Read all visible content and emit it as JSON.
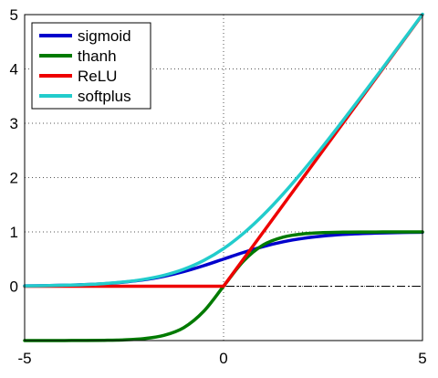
{
  "chart_data": {
    "type": "line",
    "title": "",
    "xlabel": "",
    "ylabel": "",
    "xlim": [
      -5,
      5
    ],
    "ylim": [
      -1,
      5
    ],
    "x_ticks": [
      -5,
      0,
      5
    ],
    "y_ticks": [
      0,
      1,
      2,
      3,
      4,
      5
    ],
    "x_tick_labels": [
      "-5",
      "0",
      "5"
    ],
    "y_tick_labels": [
      "0",
      "1",
      "2",
      "3",
      "4",
      "5"
    ],
    "grid": true,
    "grid_style": "dotted",
    "zero_line": {
      "y": 0,
      "style": "dash-dot",
      "color": "#000000"
    },
    "legend": {
      "position": "top-left",
      "entries": [
        "sigmoid",
        "thanh",
        "ReLU",
        "softplus"
      ]
    },
    "x": [
      -5,
      -4.5,
      -4,
      -3.5,
      -3,
      -2.5,
      -2,
      -1.5,
      -1,
      -0.5,
      0,
      0.5,
      1,
      1.5,
      2,
      2.5,
      3,
      3.5,
      4,
      4.5,
      5
    ],
    "series": [
      {
        "name": "sigmoid",
        "color": "#0000cc",
        "values": [
          0.007,
          0.011,
          0.018,
          0.029,
          0.047,
          0.076,
          0.119,
          0.182,
          0.269,
          0.378,
          0.5,
          0.622,
          0.731,
          0.818,
          0.881,
          0.924,
          0.953,
          0.971,
          0.982,
          0.989,
          0.993
        ]
      },
      {
        "name": "thanh",
        "color": "#007a00",
        "values": [
          -1.0,
          -1.0,
          -0.999,
          -0.998,
          -0.995,
          -0.987,
          -0.964,
          -0.905,
          -0.762,
          -0.462,
          0.0,
          0.462,
          0.762,
          0.905,
          0.964,
          0.987,
          0.995,
          0.998,
          0.999,
          1.0,
          1.0
        ]
      },
      {
        "name": "ReLU",
        "color": "#ee0000",
        "values": [
          0,
          0,
          0,
          0,
          0,
          0,
          0,
          0,
          0,
          0,
          0,
          0.5,
          1,
          1.5,
          2,
          2.5,
          3,
          3.5,
          4,
          4.5,
          5
        ]
      },
      {
        "name": "softplus",
        "color": "#22cccc",
        "values": [
          0.007,
          0.011,
          0.018,
          0.03,
          0.049,
          0.079,
          0.127,
          0.201,
          0.313,
          0.474,
          0.693,
          0.974,
          1.313,
          1.701,
          2.127,
          2.579,
          3.049,
          3.53,
          4.018,
          4.511,
          5.007
        ]
      }
    ]
  }
}
